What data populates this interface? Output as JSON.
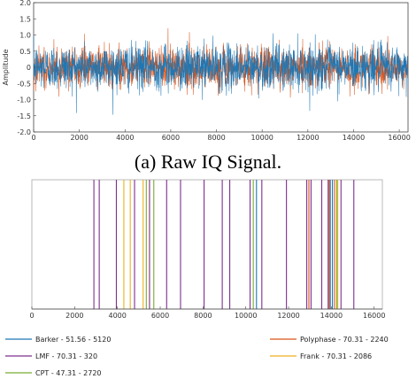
{
  "chart_data": [
    {
      "type": "line",
      "title": "",
      "caption": "(a) Raw IQ Signal.",
      "xlabel": "",
      "ylabel": "Amplitude",
      "xlim": [
        0,
        16384
      ],
      "ylim": [
        -2.0,
        2.0
      ],
      "xticks": [
        0,
        2000,
        4000,
        6000,
        8000,
        10000,
        12000,
        14000,
        16000
      ],
      "yticks": [
        2.0,
        1.5,
        1.0,
        0.5,
        0,
        -0.5,
        -1.0,
        -1.5,
        -2.0
      ],
      "ytick_labels": [
        "2.0",
        "1.5",
        "1.0",
        "0.5",
        "0",
        "-0.5",
        "-1.0",
        "-1.5",
        "-2.0"
      ],
      "grid": false,
      "series": [
        {
          "component": "I",
          "color": "#1f77b4",
          "typical_amplitude": 0.35,
          "peak_amplitude": 1.75
        },
        {
          "component": "Q",
          "color": "#d95319",
          "typical_amplitude": 0.32,
          "peak_amplitude": 1.55
        }
      ]
    },
    {
      "type": "bar",
      "title": "",
      "xlabel": "",
      "ylabel": "",
      "xlim": [
        0,
        16384
      ],
      "xticks": [
        0,
        2000,
        4000,
        6000,
        8000,
        10000,
        12000,
        14000,
        16000
      ],
      "grid": false,
      "legend_placement": "bottom",
      "series": [
        {
          "name": "Barker - 51.56 - 5120",
          "color": "#1f77b4",
          "x": [
            10500,
            13950,
            14050
          ]
        },
        {
          "name": "LMF - 70.31 - 320",
          "color": "#7e2f8e",
          "x": [
            2900,
            3150,
            3950,
            4800,
            5500,
            6300,
            6950,
            8050,
            8900,
            9250,
            10200,
            10750,
            11900,
            12850,
            13050,
            13550,
            13850,
            14450,
            15050
          ]
        },
        {
          "name": "CPT - 47.31 - 2720",
          "color": "#77ac30",
          "x": [
            5350,
            5700,
            10350,
            14250
          ]
        },
        {
          "name": "Polyphase - 70.31 - 2240",
          "color": "#d95319",
          "x": [
            12950,
            13900,
            14150
          ]
        },
        {
          "name": "Frank - 70.31 - 2086",
          "color": "#edb120",
          "x": [
            4300,
            4600,
            5200,
            14300
          ]
        }
      ]
    }
  ],
  "colors": {
    "i_signal": "#1f77b4",
    "q_signal": "#d95319",
    "axis": "#444444"
  }
}
